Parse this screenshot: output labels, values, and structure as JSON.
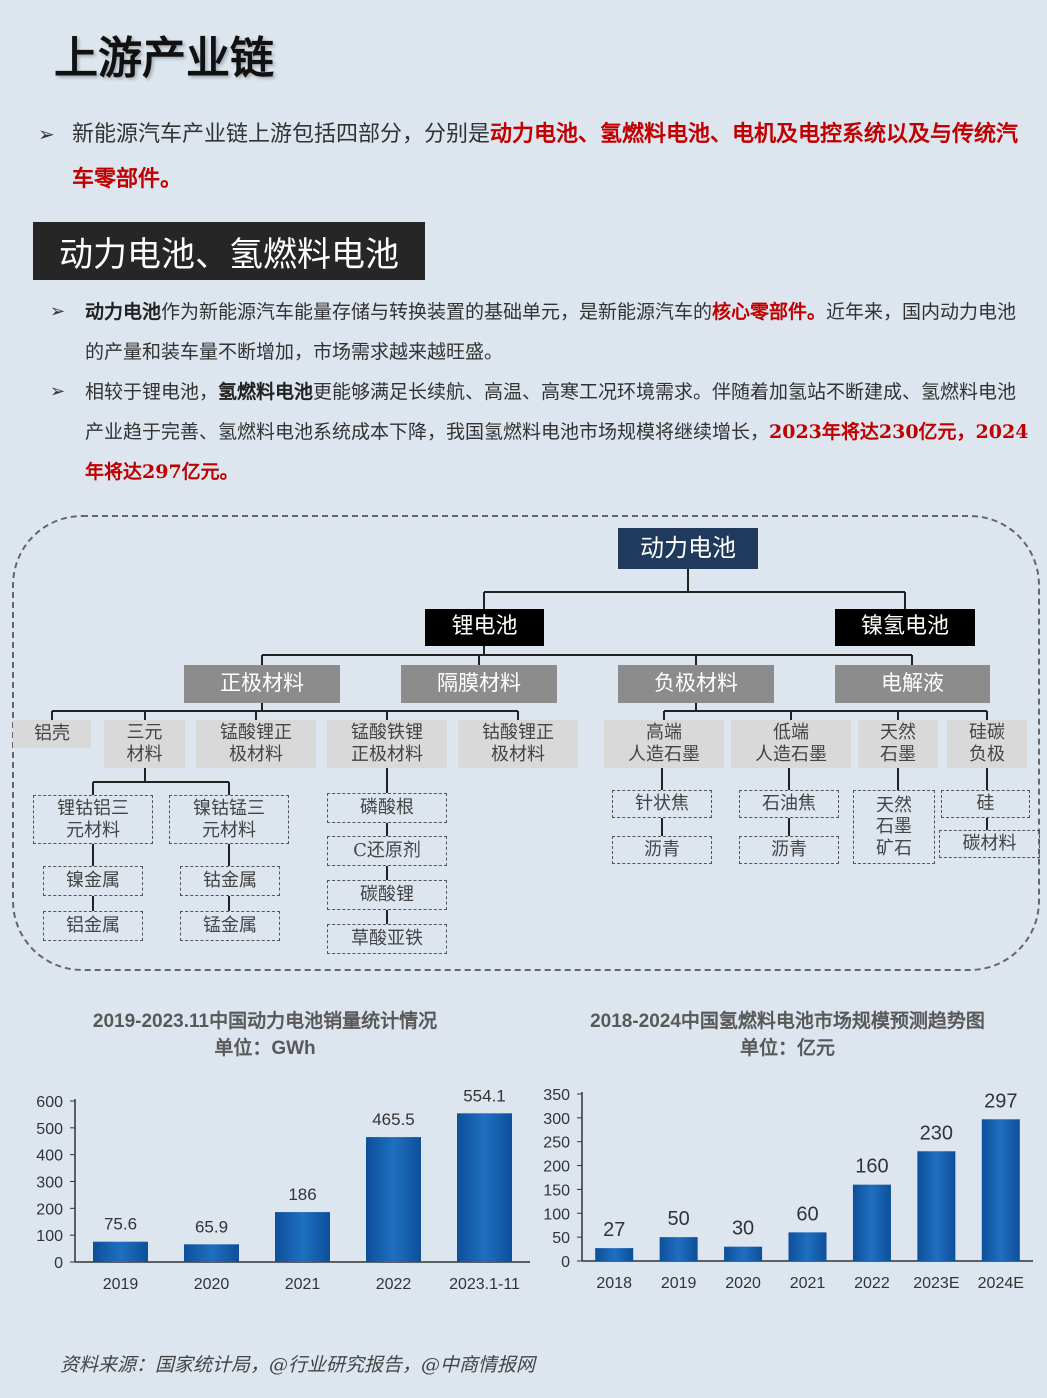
{
  "page": {
    "title": "上游产业链",
    "intro": {
      "bullet": "➢",
      "text_normal": "新能源汽车产业链上游包括四部分，分别是",
      "text_red": "动力电池、氢燃料电池、电机及电控系统以及与传统汽车零部件。"
    },
    "section_heading": "动力电池、氢燃料电池",
    "para1": {
      "bullet": "➢",
      "bold": "动力电池",
      "text1": "作为新能源汽车能量存储与转换装置的基础单元，是新能源汽车的",
      "red": "核心零部件。",
      "text2": "近年来，国内动力电池的产量和装车量不断增加，市场需求越来越旺盛。"
    },
    "para2": {
      "bullet": "➢",
      "text1": "相较于锂电池，",
      "bold": "氢燃料电池",
      "text2": "更能够满足长续航、高温、高寒工况环境需求。伴随着加氢站不断建成、氢燃料电池产业趋于完善、氢燃料电池系统成本下降，我国氢燃料电池市场规模将继续增长，",
      "red": "2023年将达230亿元，2024年将达297亿元。"
    },
    "source": "资料来源：国家统计局，@行业研究报告，@中商情报网"
  },
  "tree": {
    "root": "动力电池",
    "lithium": "锂电池",
    "nimh": "镍氢电池",
    "categories": [
      "正极材料",
      "隔膜材料",
      "负极材料",
      "电解液"
    ],
    "cathode": [
      "铝壳",
      "三元\n材料",
      "锰酸锂正\n极材料",
      "锰酸铁锂\n正极材料",
      "钴酸锂正\n极材料"
    ],
    "anode": [
      "高端\n人造石墨",
      "低端\n人造石墨",
      "天然\n石墨",
      "硅碳\n负极"
    ],
    "ternary": [
      "锂钴铝三\n元材料",
      "镍钴锰三\n元材料"
    ],
    "nca_metals": [
      "镍金属",
      "铝金属"
    ],
    "ncm_metals": [
      "钴金属",
      "锰金属"
    ],
    "lmfp_materials": [
      "磷酸根",
      "C还原剂",
      "碳酸锂",
      "草酸亚铁"
    ],
    "high_graphite": [
      "针状焦",
      "沥青"
    ],
    "low_graphite": [
      "石油焦",
      "沥青"
    ],
    "natural_graphite": [
      "天然\n石墨\n矿石"
    ],
    "si_c": [
      "硅",
      "碳材料"
    ]
  },
  "chart_data": [
    {
      "type": "bar",
      "title": "2019-2023.11中国动力电池销量统计情况",
      "subtitle": "单位：GWh",
      "categories": [
        "2019",
        "2020",
        "2021",
        "2022",
        "2023.1-11"
      ],
      "values": [
        75.6,
        65.9,
        186,
        465.5,
        554.1
      ],
      "value_labels": [
        "75.6",
        "65.9",
        "186",
        "465.5",
        "554.1"
      ],
      "ylim": [
        0,
        600
      ],
      "yticks": [
        0,
        100,
        200,
        300,
        400,
        500,
        600
      ],
      "grid": false,
      "color": "#1f6fc0"
    },
    {
      "type": "bar",
      "title": "2018-2024中国氢燃料电池市场规模预测趋势图",
      "subtitle": "单位：亿元",
      "categories": [
        "2018",
        "2019",
        "2020",
        "2021",
        "2022",
        "2023E",
        "2024E"
      ],
      "values": [
        27,
        50,
        30,
        60,
        160,
        230,
        297
      ],
      "value_labels": [
        "27",
        "50",
        "30",
        "60",
        "160",
        "230",
        "297"
      ],
      "ylim": [
        0,
        350
      ],
      "yticks": [
        0,
        50,
        100,
        150,
        200,
        250,
        300,
        350
      ],
      "grid": false,
      "color": "#1f6fc0"
    }
  ]
}
